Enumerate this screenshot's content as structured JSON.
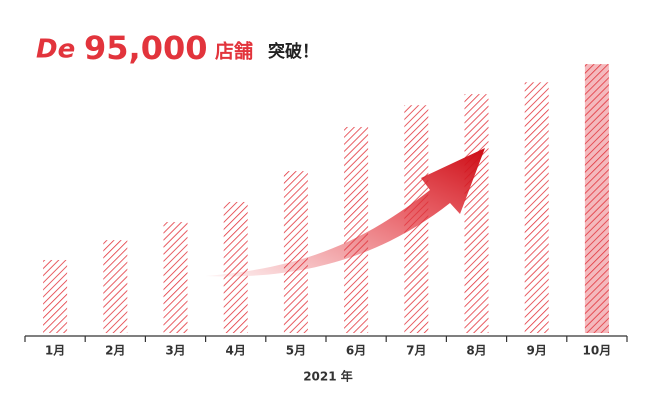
{
  "chart_data": {
    "type": "bar",
    "title": {
      "logo": "De",
      "number": "95,000",
      "unit": "店舗",
      "tail": "突破！"
    },
    "x_label": "2021 年",
    "categories": [
      "1月",
      "2月",
      "3月",
      "4月",
      "5月",
      "6月",
      "7月",
      "8月",
      "9月",
      "10月"
    ],
    "values": [
      25800,
      32800,
      39200,
      46300,
      57200,
      72800,
      80500,
      84400,
      88600,
      95000
    ],
    "color": "#e2343c",
    "fill_colors": [
      "none",
      "none",
      "none",
      "none",
      "none",
      "none",
      "none",
      "none",
      "none",
      "#f4b9bd"
    ],
    "ylim": [
      0,
      100000
    ]
  }
}
